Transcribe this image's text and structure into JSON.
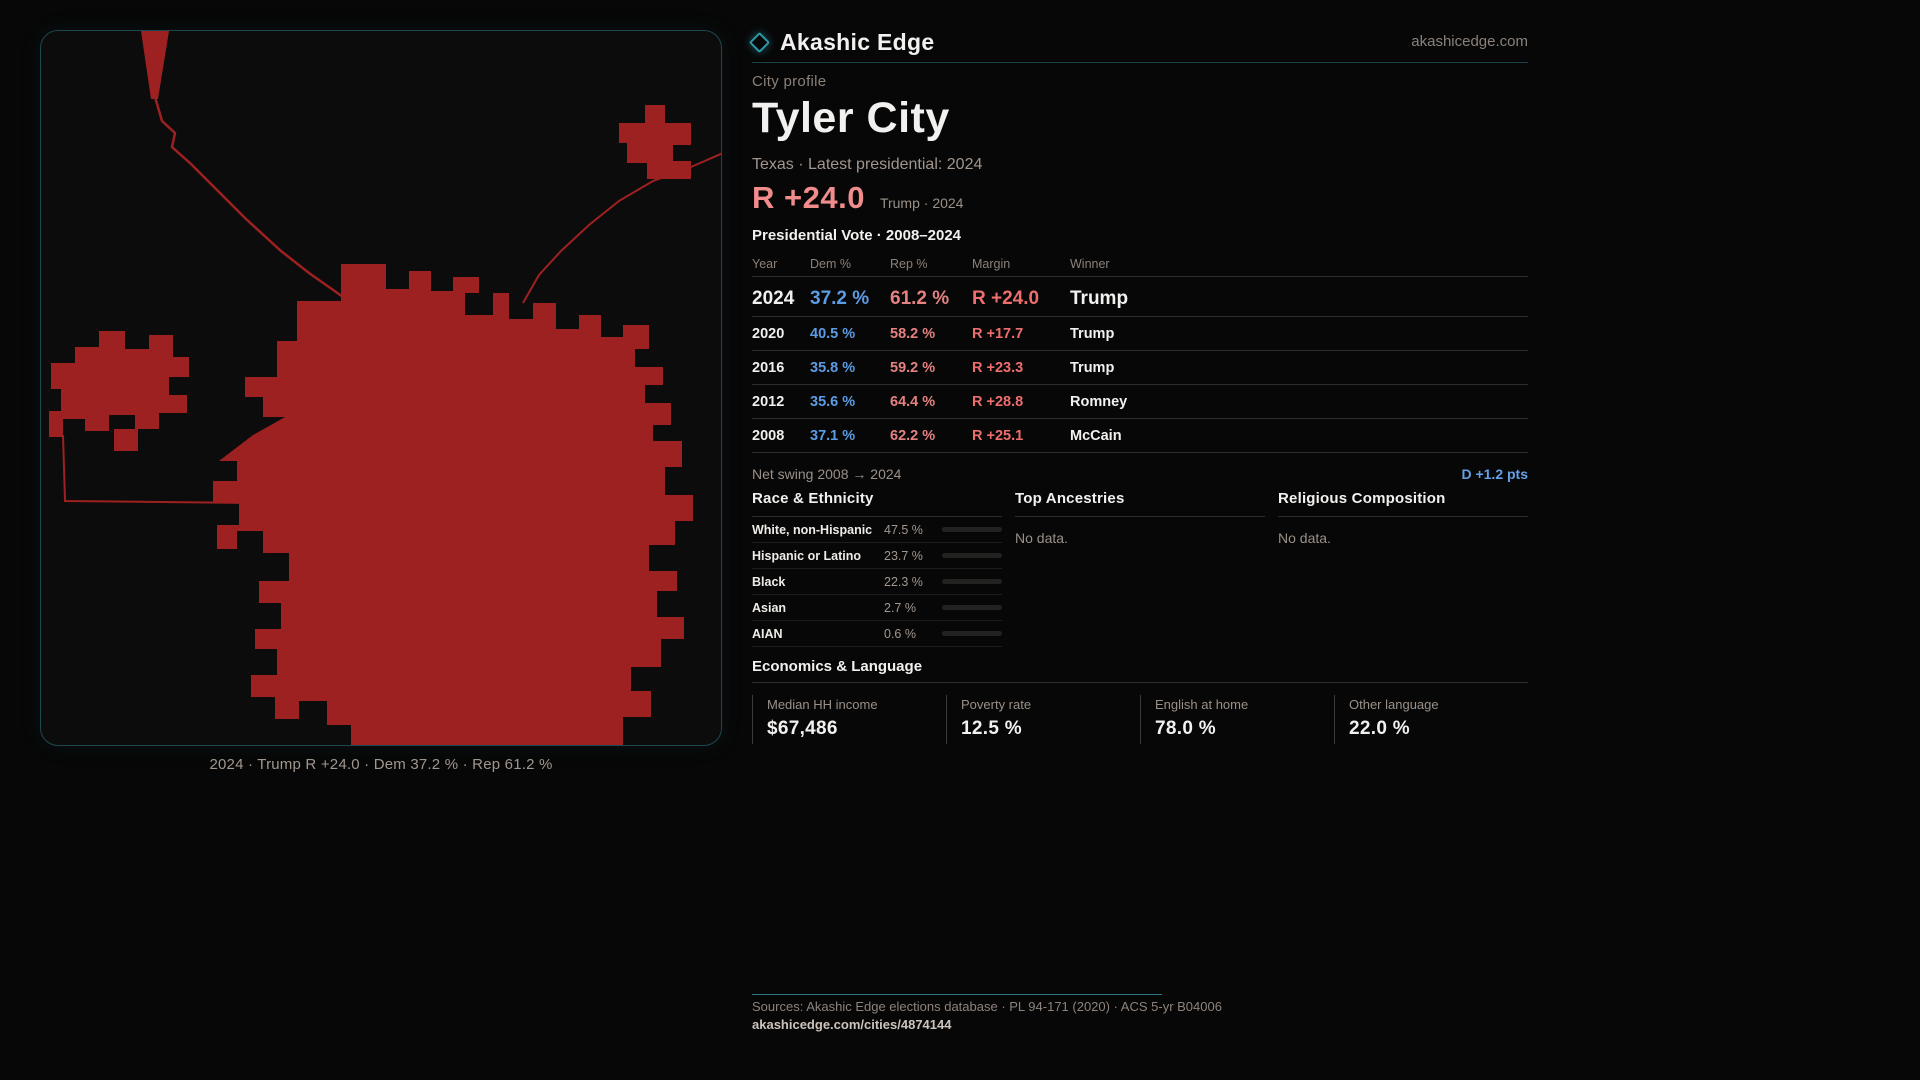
{
  "brand": {
    "name": "Akashic Edge",
    "site": "akashicedge.com",
    "logo_icon": "diamond-outline",
    "accent_teal": "#2f96a6"
  },
  "profile": {
    "kicker": "City profile",
    "title": "Tyler City",
    "subtitle": "Texas · Latest presidential: 2024",
    "headline_margin": "R +24.0",
    "headline_note": "Trump · 2024"
  },
  "map": {
    "caption": "2024 · Trump R +24.0 · Dem 37.2 % · Rep 61.2 %",
    "shape_color": "#9e2121"
  },
  "vote_table": {
    "title": "Presidential Vote · 2008–2024",
    "columns": [
      "Year",
      "Dem %",
      "Rep %",
      "Margin",
      "Winner"
    ],
    "rows": [
      {
        "year": "2024",
        "dem": "37.2 %",
        "rep": "61.2 %",
        "margin": "R +24.0",
        "winner": "Trump"
      },
      {
        "year": "2020",
        "dem": "40.5 %",
        "rep": "58.2 %",
        "margin": "R +17.7",
        "winner": "Trump"
      },
      {
        "year": "2016",
        "dem": "35.8 %",
        "rep": "59.2 %",
        "margin": "R +23.3",
        "winner": "Trump"
      },
      {
        "year": "2012",
        "dem": "35.6 %",
        "rep": "64.4 %",
        "margin": "R +28.8",
        "winner": "Romney"
      },
      {
        "year": "2008",
        "dem": "37.1 %",
        "rep": "62.2 %",
        "margin": "R +25.1",
        "winner": "McCain"
      }
    ]
  },
  "net_swing": {
    "label": "Net swing 2008 → 2024",
    "value": "D +1.2 pts"
  },
  "race": {
    "title": "Race & Ethnicity",
    "rows": [
      {
        "label": "White, non-Hispanic",
        "value": "47.5 %",
        "pct": 47.5,
        "color": "#9fb3c8"
      },
      {
        "label": "Hispanic or Latino",
        "value": "23.7 %",
        "pct": 23.7,
        "color": "#d69a2b"
      },
      {
        "label": "Black",
        "value": "22.3 %",
        "pct": 22.3,
        "color": "#9c86e6"
      },
      {
        "label": "Asian",
        "value": "2.7 %",
        "pct": 2.7,
        "color": "#27a57c"
      },
      {
        "label": "AIAN",
        "value": "0.6 %",
        "pct": 0.6,
        "color": "#b5641f"
      }
    ]
  },
  "ancestries": {
    "title": "Top Ancestries",
    "empty": "No data."
  },
  "religion": {
    "title": "Religious Composition",
    "empty": "No data."
  },
  "economics": {
    "title": "Economics & Language",
    "stats": [
      {
        "label": "Median HH income",
        "value": "$67,486"
      },
      {
        "label": "Poverty rate",
        "value": "12.5 %"
      },
      {
        "label": "English at home",
        "value": "78.0 %"
      },
      {
        "label": "Other language",
        "value": "22.0 %"
      }
    ]
  },
  "footer": {
    "sources": "Sources: Akashic Edge elections database · PL 94-171 (2020) · ACS 5-yr B04006",
    "url": "akashicedge.com/cities/4874144"
  },
  "colors": {
    "dem_blue": "#5b9ce4",
    "rep_red": "#e58181",
    "margin_red": "#ee6e6e",
    "headline_red": "#f08c8c",
    "swing_blue": "#64a0e6",
    "map_red": "#9e2121"
  }
}
